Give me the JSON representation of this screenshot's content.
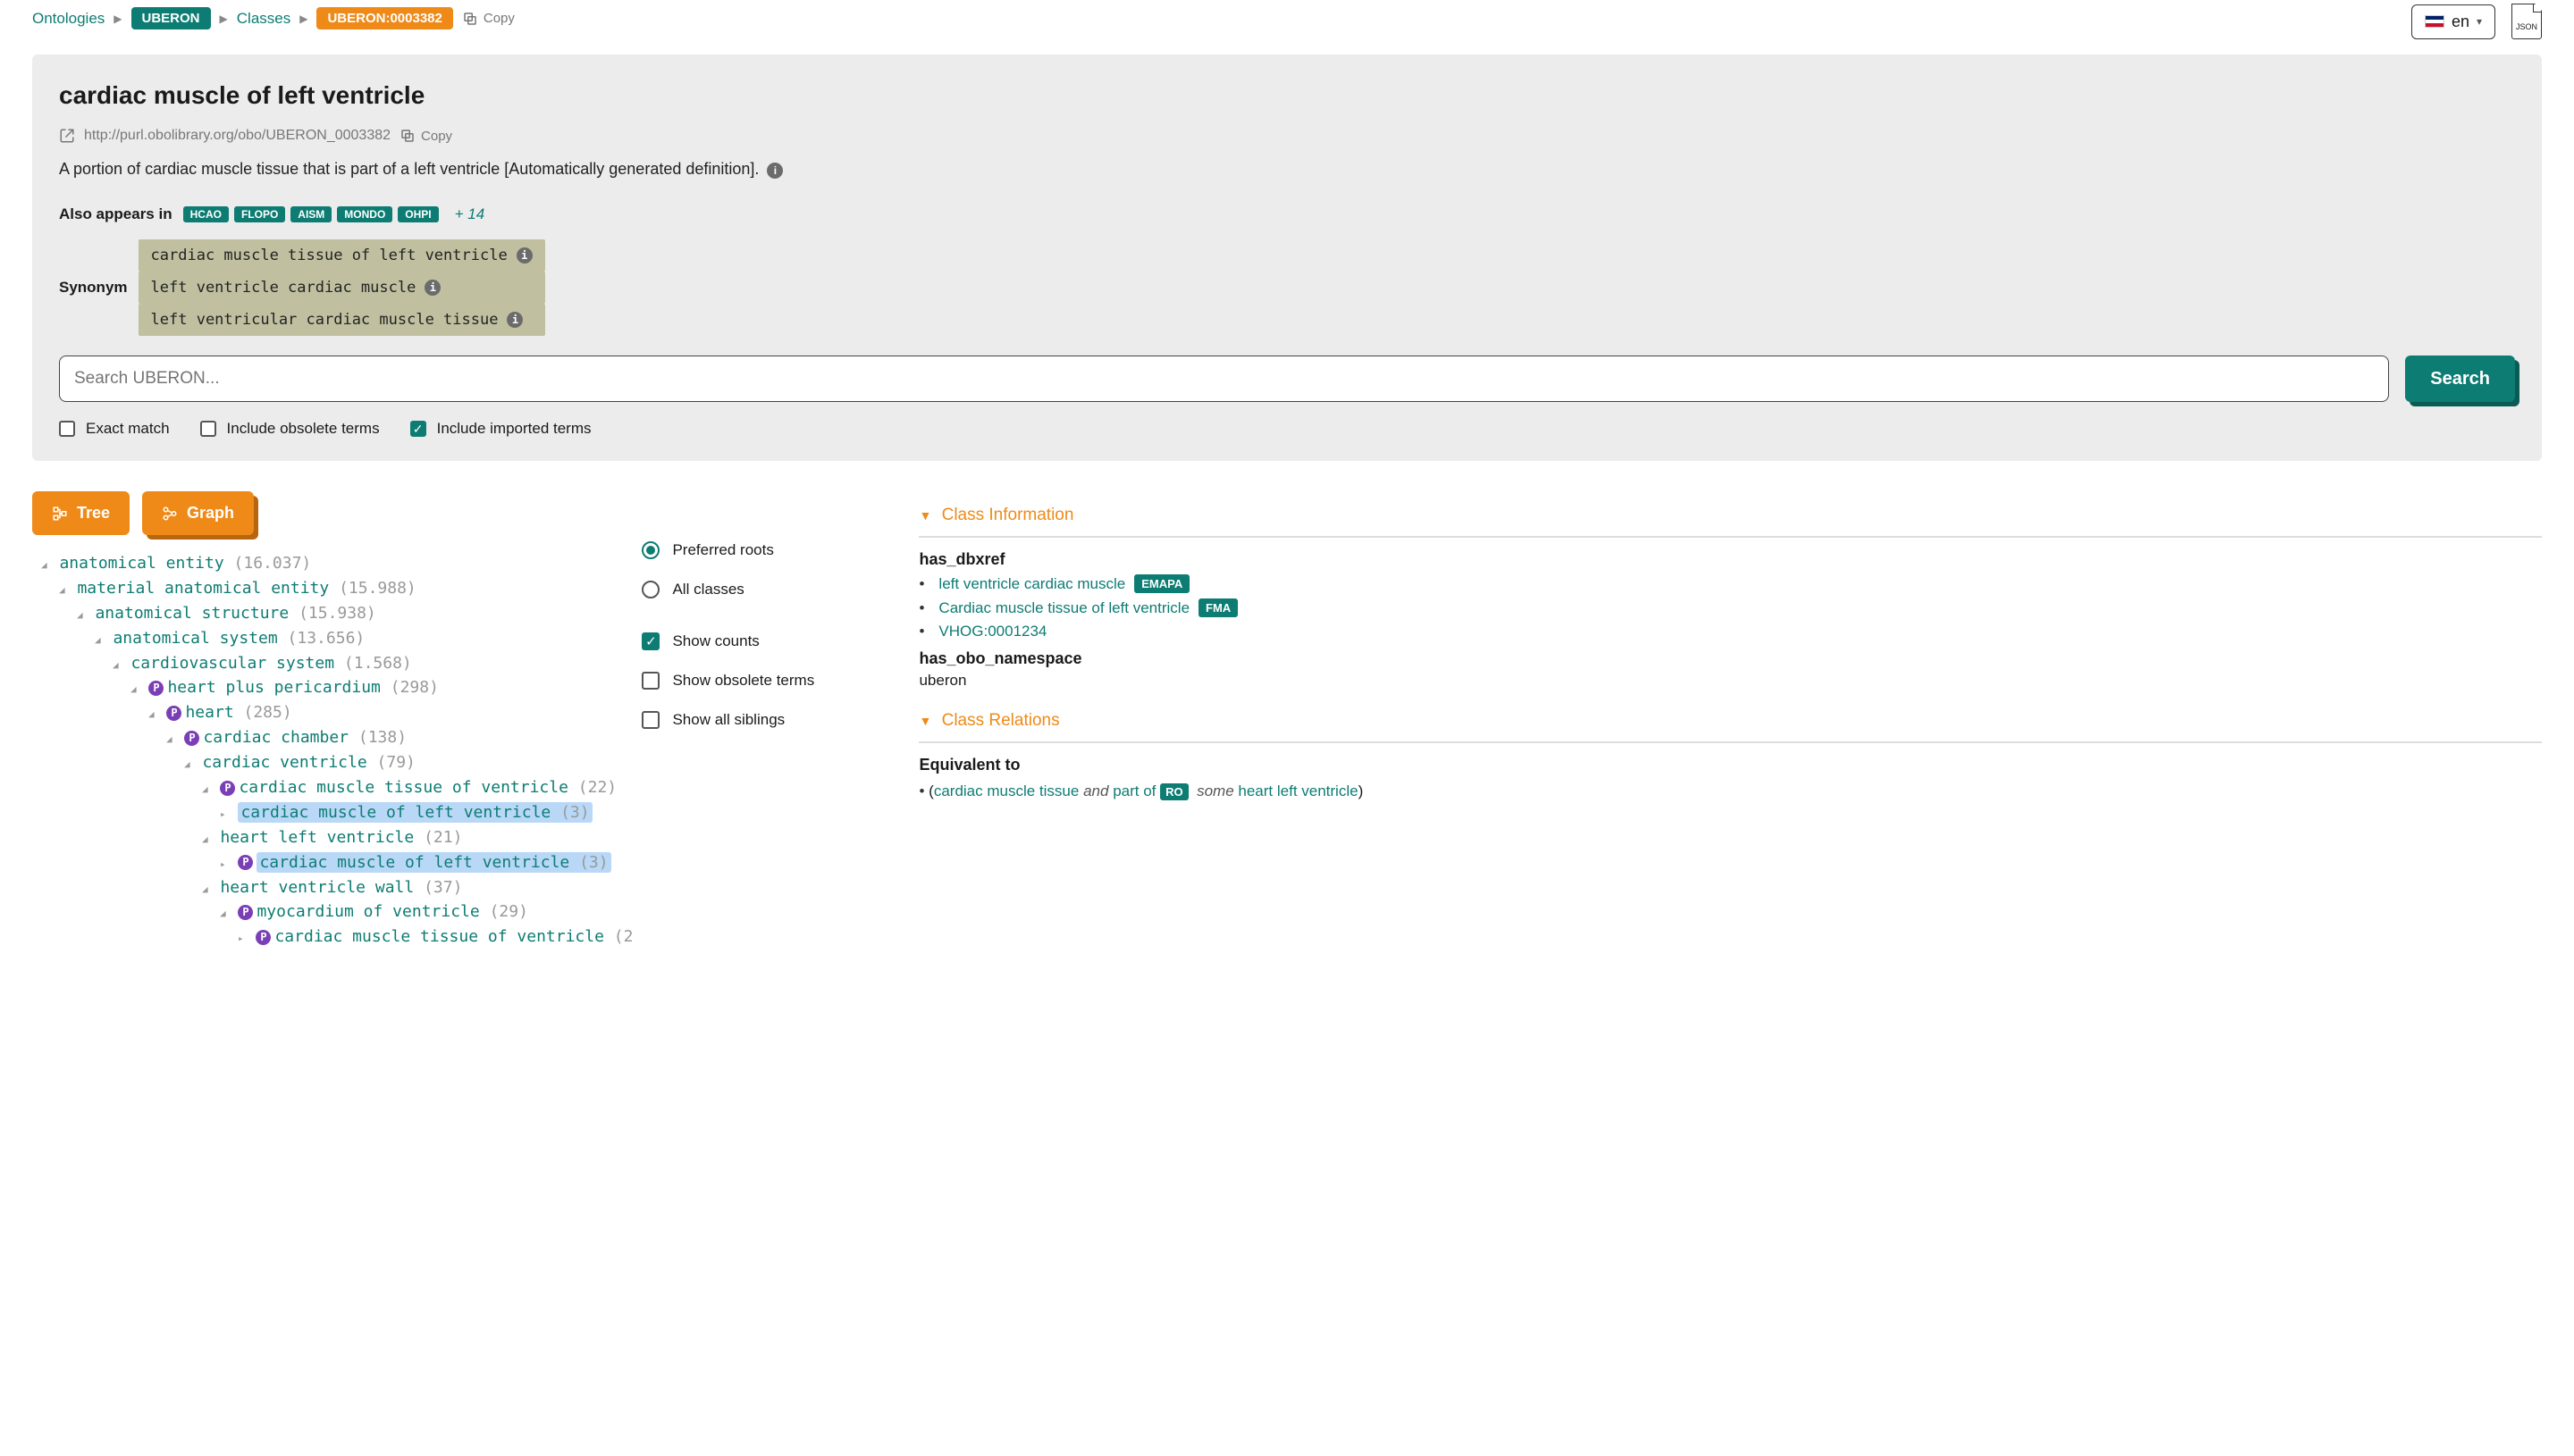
{
  "breadcrumb": {
    "ontologies": "Ontologies",
    "uberon": "UBERON",
    "classes": "Classes",
    "id_badge": "UBERON:0003382",
    "copy": "Copy"
  },
  "lang": "en",
  "json_label": "JSON",
  "header": {
    "title": "cardiac muscle of left ventricle",
    "iri": "http://purl.obolibrary.org/obo/UBERON_0003382",
    "copy": "Copy",
    "definition": "A portion of cardiac muscle tissue that is part of a left ventricle [Automatically generated definition].",
    "appears_label": "Also appears in",
    "appears": [
      "HCAO",
      "FLOPO",
      "AISM",
      "MONDO",
      "OHPI"
    ],
    "appears_more": "+ 14",
    "synonym_label": "Synonym",
    "synonyms": [
      "cardiac muscle tissue of left ventricle",
      "left ventricle cardiac muscle",
      "left ventricular cardiac muscle tissue"
    ],
    "search_placeholder": "Search UBERON...",
    "search_btn": "Search",
    "exact_match": "Exact match",
    "include_obsolete": "Include obsolete terms",
    "include_imported": "Include imported terms"
  },
  "view": {
    "tree": "Tree",
    "graph": "Graph"
  },
  "tree": [
    {
      "indent": 0,
      "p": false,
      "label": "anatomical entity",
      "count": "(16.037)"
    },
    {
      "indent": 1,
      "p": false,
      "label": "material anatomical entity",
      "count": "(15.988)"
    },
    {
      "indent": 2,
      "p": false,
      "label": "anatomical structure",
      "count": "(15.938)"
    },
    {
      "indent": 3,
      "p": false,
      "label": "anatomical system",
      "count": "(13.656)"
    },
    {
      "indent": 4,
      "p": false,
      "label": "cardiovascular system",
      "count": "(1.568)"
    },
    {
      "indent": 5,
      "p": true,
      "label": "heart plus pericardium",
      "count": "(298)"
    },
    {
      "indent": 6,
      "p": true,
      "label": "heart",
      "count": "(285)"
    },
    {
      "indent": 7,
      "p": true,
      "label": "cardiac chamber",
      "count": "(138)"
    },
    {
      "indent": 8,
      "p": false,
      "label": "cardiac ventricle",
      "count": "(79)"
    },
    {
      "indent": 9,
      "p": true,
      "label": "cardiac muscle tissue of ventricle",
      "count": "(22)"
    },
    {
      "indent": 10,
      "p": false,
      "label": "cardiac muscle of left ventricle",
      "count": "(3)",
      "hl": true,
      "right_caret": true
    },
    {
      "indent": 9,
      "p": false,
      "label": "heart left ventricle",
      "count": "(21)"
    },
    {
      "indent": 10,
      "p": true,
      "label": "cardiac muscle of left ventricle",
      "count": "(3)",
      "hl": true,
      "right_caret": true
    },
    {
      "indent": 9,
      "p": false,
      "label": "heart ventricle wall",
      "count": "(37)"
    },
    {
      "indent": 10,
      "p": true,
      "label": "myocardium of ventricle",
      "count": "(29)"
    },
    {
      "indent": 11,
      "p": true,
      "label": "cardiac muscle tissue of ventricle",
      "count": "(2",
      "right_caret": true
    }
  ],
  "tree_opts": {
    "preferred_roots": "Preferred roots",
    "all_classes": "All classes",
    "show_counts": "Show counts",
    "show_obsolete": "Show obsolete terms",
    "show_siblings": "Show all siblings"
  },
  "right": {
    "class_info_hdr": "Class Information",
    "has_dbxref_label": "has_dbxref",
    "dbxref": [
      {
        "text": "left ventricle cardiac muscle",
        "pill": "EMAPA"
      },
      {
        "text": "Cardiac muscle tissue of left ventricle",
        "pill": "FMA"
      },
      {
        "text": "VHOG:0001234",
        "pill": null
      }
    ],
    "ns_label": "has_obo_namespace",
    "ns_value": "uberon",
    "class_rel_hdr": "Class Relations",
    "eq_label": "Equivalent to",
    "eq": {
      "open": "(",
      "cmt": "cardiac muscle tissue",
      "and": "and",
      "partof": "part of",
      "ro": "RO",
      "some": "some",
      "hlv": "heart left ventricle",
      "close": ")"
    }
  }
}
